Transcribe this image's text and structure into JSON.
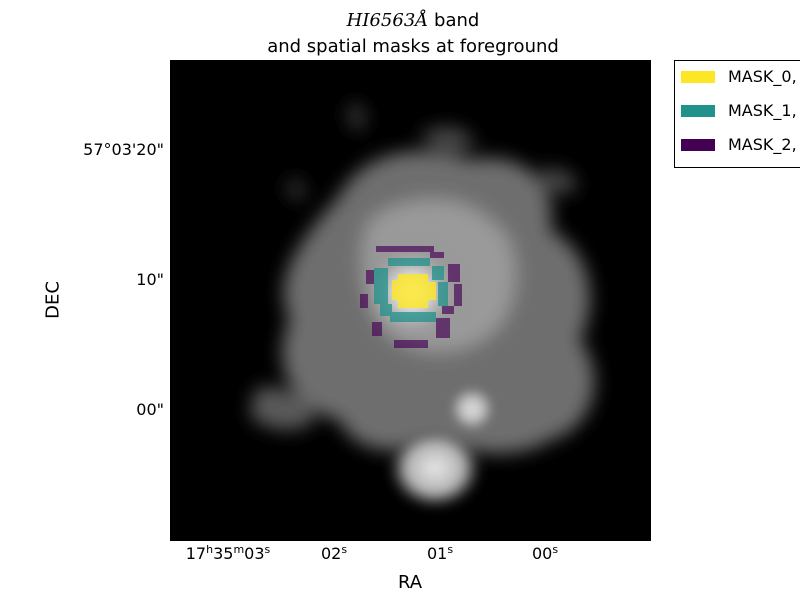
{
  "title": {
    "line1_math": "HI6563Å",
    "line1_text": " band",
    "line2": "and spatial masks at foreground"
  },
  "axes": {
    "xlabel": "RA",
    "ylabel": "DEC",
    "yticks": [
      "57°03'20\"",
      "10\"",
      "00\""
    ],
    "xticks": [
      {
        "h": "17",
        "h_sup": "h",
        "m": "35",
        "m_sup": "m",
        "s": "03",
        "s_sup": "s"
      },
      {
        "s": "02",
        "s_sup": "s"
      },
      {
        "s": "01",
        "s_sup": "s"
      },
      {
        "s": "00",
        "s_sup": "s"
      }
    ]
  },
  "legend": {
    "items": [
      {
        "label": "MASK_0,",
        "color": "#fde725"
      },
      {
        "label": "MASK_1,",
        "color": "#21918c"
      },
      {
        "label": "MASK_2,",
        "color": "#440154"
      }
    ]
  },
  "image": {
    "colormap": "grayscale",
    "background": "#000000"
  }
}
